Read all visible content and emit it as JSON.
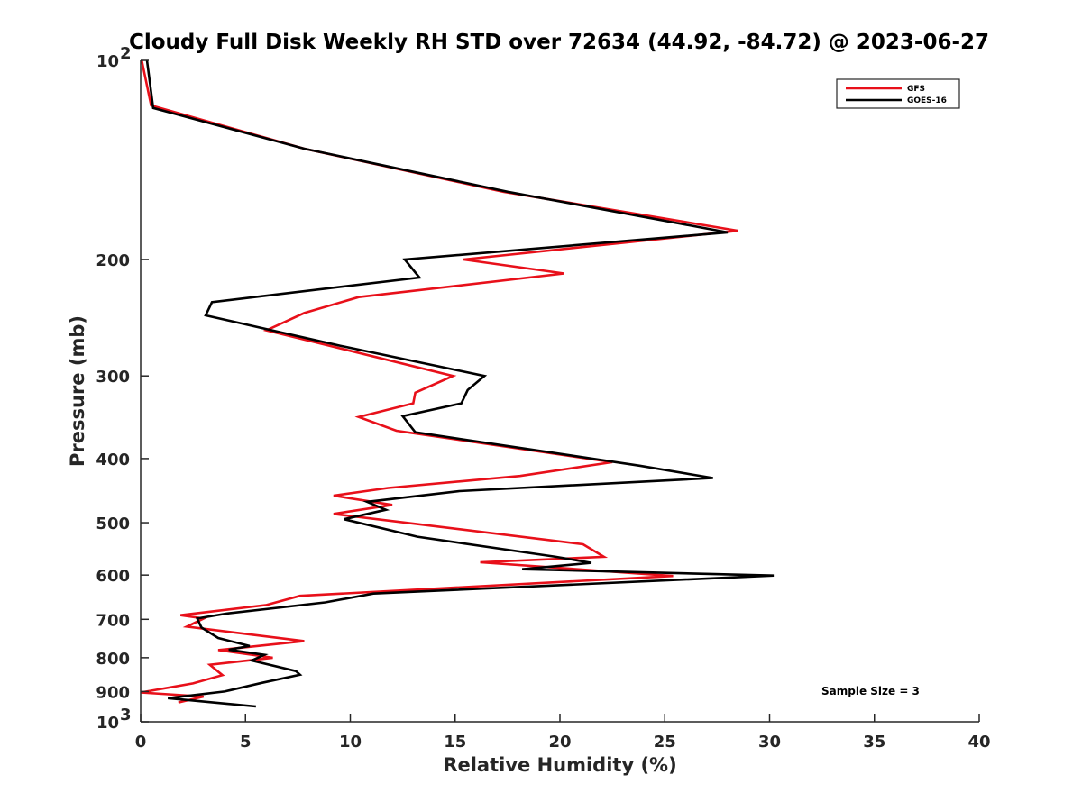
{
  "chart_data": {
    "type": "line",
    "title": "Cloudy Full Disk Weekly RH STD over 72634 (44.92, -84.72) @ 2023-06-27",
    "xlabel": "Relative Humidity (%)",
    "ylabel": "Pressure (mb)",
    "xlim": [
      0,
      40
    ],
    "ylim": [
      100,
      1000
    ],
    "y_scale": "log",
    "y_reversed": true,
    "x_ticks": [
      0,
      5,
      10,
      15,
      20,
      25,
      30,
      35,
      40
    ],
    "y_ticks": [
      {
        "value": 100,
        "label": "10",
        "exp": "2"
      },
      {
        "value": 200,
        "label": "200"
      },
      {
        "value": 300,
        "label": "300"
      },
      {
        "value": 400,
        "label": "400"
      },
      {
        "value": 500,
        "label": "500"
      },
      {
        "value": 600,
        "label": "600"
      },
      {
        "value": 700,
        "label": "700"
      },
      {
        "value": 800,
        "label": "800"
      },
      {
        "value": 900,
        "label": "900"
      },
      {
        "value": 1000,
        "label": "10",
        "exp": "3"
      }
    ],
    "grid": false,
    "legend_position": "top-right",
    "annotation": "Sample Size = 3",
    "series": [
      {
        "name": "GFS",
        "color": "#e8101a",
        "points": [
          [
            0.05,
            100
          ],
          [
            0.5,
            117
          ],
          [
            7.8,
            136
          ],
          [
            17.3,
            158
          ],
          [
            28.5,
            181
          ],
          [
            15.4,
            200
          ],
          [
            20.2,
            210
          ],
          [
            10.4,
            228
          ],
          [
            7.8,
            241
          ],
          [
            6.0,
            256
          ],
          [
            14.9,
            300
          ],
          [
            13.1,
            318
          ],
          [
            13.0,
            330
          ],
          [
            10.4,
            346
          ],
          [
            12.2,
            363
          ],
          [
            22.5,
            405
          ],
          [
            18.1,
            425
          ],
          [
            11.8,
            443
          ],
          [
            9.2,
            455
          ],
          [
            12.0,
            470
          ],
          [
            9.2,
            485
          ],
          [
            21.1,
            539
          ],
          [
            22.1,
            563
          ],
          [
            16.2,
            574
          ],
          [
            25.4,
            602
          ],
          [
            7.6,
            645
          ],
          [
            6.0,
            666
          ],
          [
            1.9,
            690
          ],
          [
            3.0,
            698
          ],
          [
            2.2,
            718
          ],
          [
            7.8,
            755
          ],
          [
            3.7,
            779
          ],
          [
            6.3,
            800
          ],
          [
            3.3,
            820
          ],
          [
            3.9,
            850
          ],
          [
            2.5,
            875
          ],
          [
            0.0,
            903
          ],
          [
            3.0,
            916
          ],
          [
            1.8,
            935
          ]
        ]
      },
      {
        "name": "GOES-16",
        "color": "#000000",
        "points": [
          [
            0.3,
            100
          ],
          [
            0.6,
            118
          ],
          [
            7.8,
            136
          ],
          [
            17.5,
            158
          ],
          [
            28.0,
            182
          ],
          [
            12.6,
            200
          ],
          [
            13.3,
            213
          ],
          [
            3.4,
            232
          ],
          [
            3.1,
            243
          ],
          [
            9.5,
            270
          ],
          [
            16.4,
            300
          ],
          [
            15.6,
            315
          ],
          [
            15.3,
            330
          ],
          [
            12.5,
            345
          ],
          [
            13.1,
            365
          ],
          [
            23.8,
            410
          ],
          [
            27.3,
            428
          ],
          [
            15.2,
            448
          ],
          [
            10.8,
            465
          ],
          [
            11.7,
            478
          ],
          [
            9.7,
            494
          ],
          [
            13.2,
            525
          ],
          [
            19.8,
            563
          ],
          [
            21.5,
            575
          ],
          [
            18.2,
            588
          ],
          [
            30.2,
            601
          ],
          [
            11.1,
            640
          ],
          [
            8.8,
            660
          ],
          [
            4.1,
            686
          ],
          [
            2.7,
            698
          ],
          [
            2.9,
            720
          ],
          [
            3.7,
            747
          ],
          [
            5.2,
            768
          ],
          [
            4.2,
            778
          ],
          [
            5.9,
            792
          ],
          [
            5.3,
            808
          ],
          [
            7.4,
            838
          ],
          [
            7.6,
            849
          ],
          [
            5.8,
            873
          ],
          [
            4.0,
            900
          ],
          [
            1.3,
            921
          ],
          [
            5.5,
            948
          ]
        ]
      }
    ]
  }
}
